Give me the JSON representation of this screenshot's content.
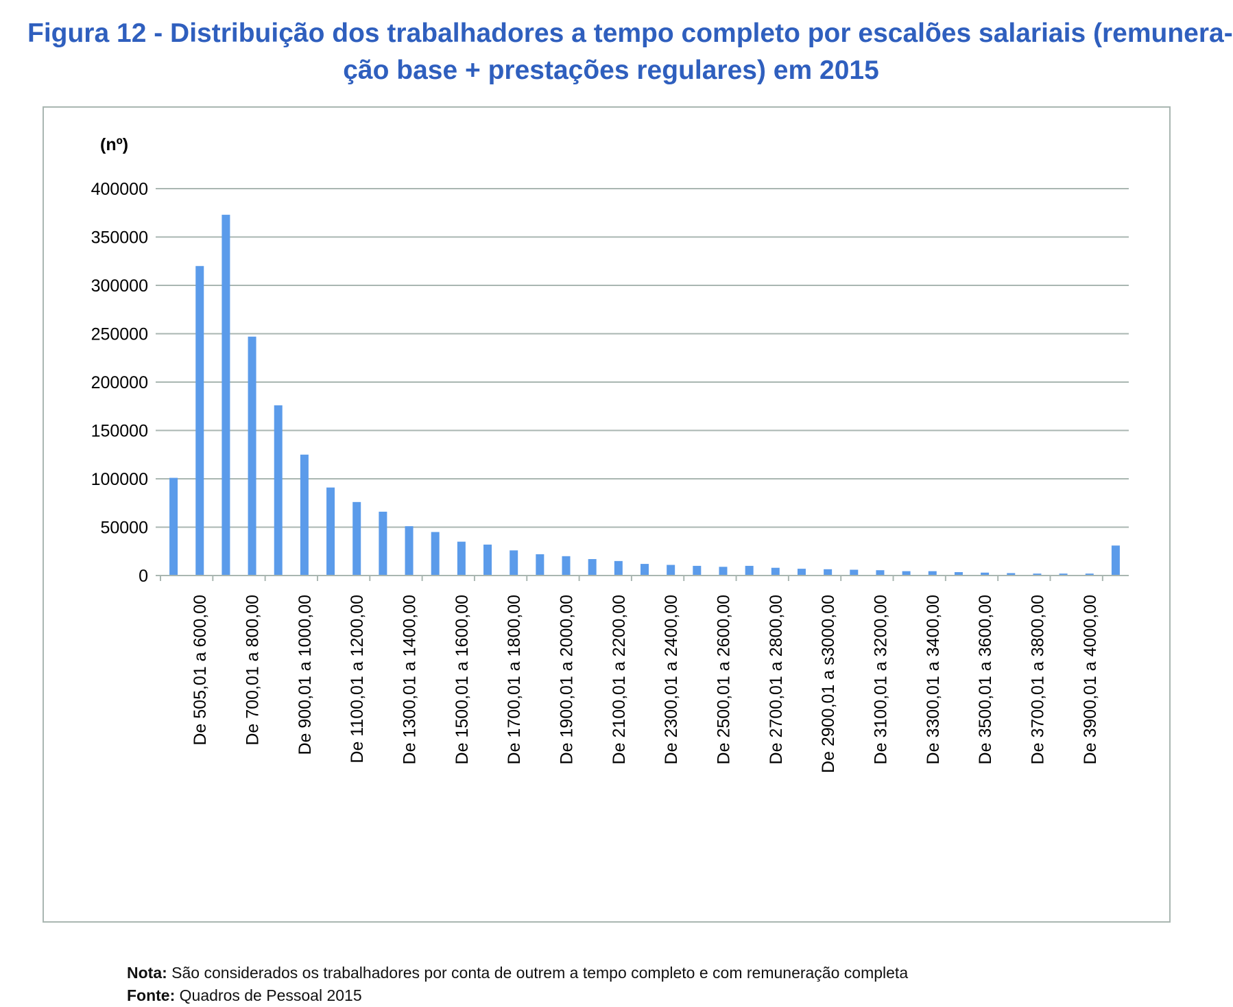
{
  "title": {
    "line1": "Figura 12 - Distribuição dos trabalhadores a tempo completo por escalões salariais (remunera-",
    "line2": "ção base + prestações regulares) em 2015"
  },
  "notes": {
    "nota_label": "Nota:",
    "nota_text": " São considerados os trabalhadores por conta de outrem a tempo completo e com remuneração completa",
    "fonte_label": "Fonte:",
    "fonte_text": " Quadros de Pessoal 2015"
  },
  "colors": {
    "title": "#2f5fbe",
    "bar": "#5b9bea",
    "grid": "#a9b6b1",
    "frame": "#a9b6b1"
  },
  "chart_data": {
    "type": "bar",
    "title": "Figura 12 - Distribuição dos trabalhadores a tempo completo por escalões salariais (remuneração base + prestações regulares) em 2015",
    "ylabel": "(nº)",
    "xlabel": "",
    "ylim": [
      0,
      400000
    ],
    "yticks": [
      0,
      50000,
      100000,
      150000,
      200000,
      250000,
      300000,
      350000,
      400000
    ],
    "grid": true,
    "legend": "none",
    "categories": [
      "",
      "De 505,01 a 600,00",
      "",
      "De 700,01 a 800,00",
      "",
      "De 900,01 a 1000,00",
      "",
      "De 1100,01 a 1200,00",
      "",
      "De 1300,01 a 1400,00",
      "",
      "De 1500,01 a 1600,00",
      "",
      "De 1700,01 a 1800,00",
      "",
      "De 1900,01 a 2000,00",
      "",
      "De 2100,01 a 2200,00",
      "",
      "De 2300,01 a 2400,00",
      "",
      "De 2500,01 a 2600,00",
      "",
      "De 2700,01 a 2800,00",
      "",
      "De 2900,01 a s3000,00",
      "",
      "De 3100,01 a 3200,00",
      "",
      "De 3300,01 a 3400,00",
      "",
      "De 3500,01 a 3600,00",
      "",
      "De 3700,01 a 3800,00",
      "",
      "De 3900,01 a 4000,00",
      ""
    ],
    "values": [
      101000,
      320000,
      373000,
      247000,
      176000,
      125000,
      91000,
      76000,
      66000,
      51000,
      45000,
      35000,
      32000,
      26000,
      22000,
      20000,
      17000,
      15000,
      12000,
      11000,
      10000,
      9000,
      10000,
      8000,
      7000,
      6500,
      6000,
      5500,
      4500,
      4500,
      3500,
      3000,
      2500,
      2000,
      2000,
      2000,
      31000
    ]
  }
}
